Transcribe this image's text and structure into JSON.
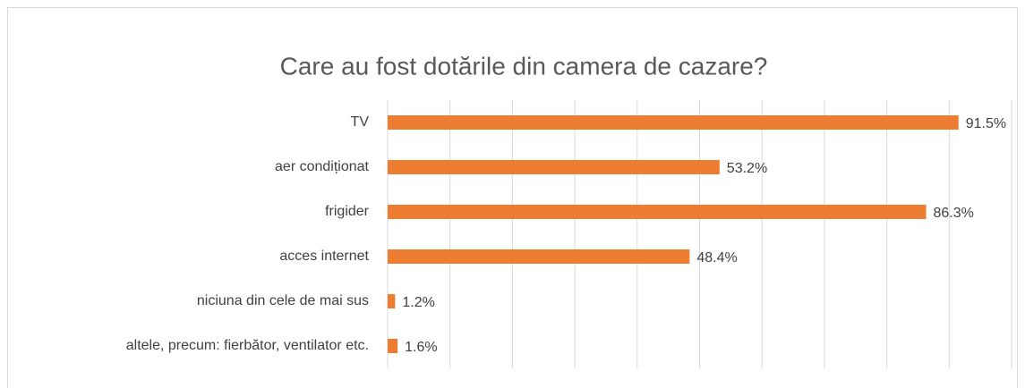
{
  "chart_data": {
    "type": "bar",
    "orientation": "horizontal",
    "title": "Care au fost dotările din camera de cazare?",
    "categories": [
      "TV",
      "aer condiționat",
      "frigider",
      "acces internet",
      "niciuna din cele de mai sus",
      "altele, precum: fierbător, ventilator etc."
    ],
    "values": [
      91.5,
      53.2,
      86.3,
      48.4,
      1.2,
      1.6
    ],
    "value_labels": [
      "91.5%",
      "53.2%",
      "86.3%",
      "48.4%",
      "1.2%",
      "1.6%"
    ],
    "color": "#ed7d31",
    "xlim": [
      0,
      100
    ],
    "xticks": [
      0,
      10,
      20,
      30,
      40,
      50,
      60,
      70,
      80,
      90,
      100
    ],
    "grid": true
  }
}
